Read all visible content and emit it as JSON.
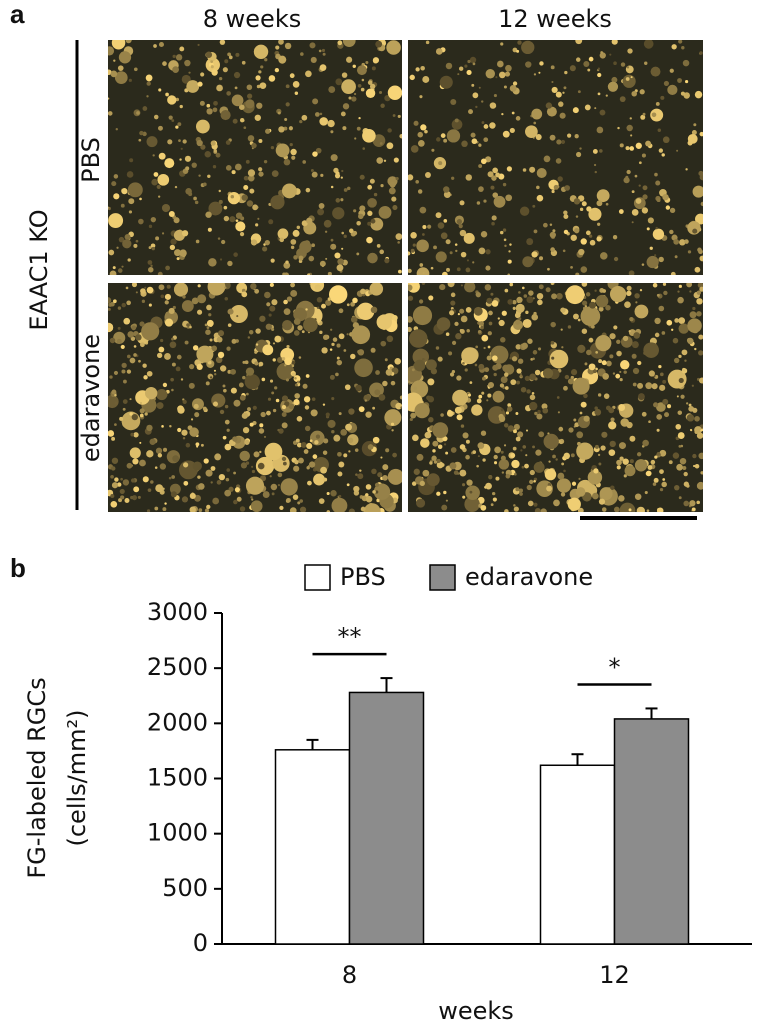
{
  "panel_a": {
    "label": "a",
    "columns": [
      "8 weeks",
      "12 weeks"
    ],
    "rows": [
      "PBS",
      "edaravone"
    ],
    "group_label": "EAAC1 KO"
  },
  "panel_b_label": "b",
  "chart_data": {
    "type": "bar",
    "categories": [
      "8",
      "12"
    ],
    "x_label": "weeks",
    "y_label": [
      "FG-labeled RGCs",
      "(cells/mm²)"
    ],
    "series": [
      {
        "name": "PBS",
        "color": "#ffffff",
        "values": [
          1760,
          1620
        ],
        "errors": [
          90,
          100
        ]
      },
      {
        "name": "edaravone",
        "color": "#8c8c8c",
        "values": [
          2280,
          2040
        ],
        "errors": [
          130,
          95
        ]
      }
    ],
    "significance": [
      "**",
      "*"
    ],
    "ylim": [
      0,
      3000
    ],
    "yticks": [
      0,
      500,
      1000,
      1500,
      2000,
      2500,
      3000
    ]
  }
}
